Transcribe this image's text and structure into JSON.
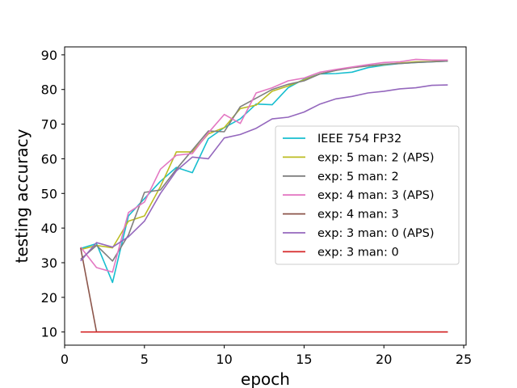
{
  "chart_data": {
    "type": "line",
    "xlabel": "epoch",
    "ylabel": "testing accuracy",
    "xlim": [
      0,
      25.15
    ],
    "ylim": [
      6.2,
      92.3
    ],
    "xticks": [
      0,
      5,
      10,
      15,
      20,
      25
    ],
    "yticks": [
      10,
      20,
      30,
      40,
      50,
      60,
      70,
      80,
      90
    ],
    "grid": false,
    "legend_position": "center-right",
    "x": [
      1,
      2,
      3,
      4,
      5,
      6,
      7,
      8,
      9,
      10,
      11,
      12,
      13,
      14,
      15,
      16,
      17,
      18,
      19,
      20,
      21,
      22,
      23,
      24
    ],
    "series": [
      {
        "name": "IEEE 754 FP32",
        "color": "#17becf",
        "values": [
          34.1,
          35.5,
          24.3,
          43.5,
          48.5,
          53.5,
          57.5,
          56.0,
          65.8,
          69.0,
          71.5,
          75.8,
          75.6,
          80.5,
          83.0,
          84.5,
          84.6,
          85.0,
          86.3,
          87.0,
          87.5,
          87.8,
          88.0,
          88.2
        ]
      },
      {
        "name": "exp: 5 man: 2 (APS)",
        "color": "#bcbd22",
        "values": [
          33.8,
          35.0,
          34.3,
          42.0,
          43.5,
          52.0,
          62.0,
          62.0,
          67.2,
          69.0,
          74.5,
          75.5,
          79.5,
          81.0,
          82.8,
          84.5,
          85.5,
          86.3,
          86.8,
          87.2,
          87.6,
          88.0,
          88.1,
          88.3
        ]
      },
      {
        "name": "exp: 5 man: 2",
        "color": "#7f7f7f",
        "values": [
          31.0,
          35.0,
          30.5,
          38.0,
          50.3,
          51.0,
          57.0,
          62.5,
          68.0,
          67.8,
          75.0,
          77.5,
          80.0,
          81.5,
          82.5,
          84.5,
          85.5,
          86.3,
          86.8,
          87.3,
          87.5,
          87.8,
          88.0,
          88.2
        ]
      },
      {
        "name": "exp: 4 man: 3 (APS)",
        "color": "#e377c2",
        "values": [
          34.5,
          28.6,
          27.3,
          44.5,
          47.5,
          57.0,
          61.0,
          61.5,
          67.5,
          72.8,
          70.2,
          79.0,
          80.5,
          82.5,
          83.3,
          85.0,
          85.8,
          86.5,
          87.2,
          87.8,
          88.0,
          88.7,
          88.5,
          88.5
        ]
      },
      {
        "name": "exp: 4 man: 3",
        "color": "#8c564b",
        "values": [
          34.3,
          10.0,
          10.0,
          10.0,
          10.0,
          10.0,
          10.0,
          10.0,
          10.0,
          10.0,
          10.0,
          10.0,
          10.0,
          10.0,
          10.0,
          10.0,
          10.0,
          10.0,
          10.0,
          10.0,
          10.0,
          10.0,
          10.0,
          10.0
        ]
      },
      {
        "name": "exp: 3 man: 0 (APS)",
        "color": "#9467bd",
        "values": [
          30.5,
          35.8,
          34.5,
          37.5,
          42.0,
          50.0,
          56.5,
          60.5,
          60.0,
          66.0,
          67.0,
          68.8,
          71.5,
          72.0,
          73.5,
          75.8,
          77.3,
          78.0,
          79.0,
          79.5,
          80.2,
          80.5,
          81.2,
          81.3
        ]
      },
      {
        "name": "exp: 3 man: 0",
        "color": "#d62728",
        "values": [
          10.0,
          10.0,
          10.0,
          10.0,
          10.0,
          10.0,
          10.0,
          10.0,
          10.0,
          10.0,
          10.0,
          10.0,
          10.0,
          10.0,
          10.0,
          10.0,
          10.0,
          10.0,
          10.0,
          10.0,
          10.0,
          10.0,
          10.0,
          10.0
        ]
      }
    ]
  }
}
